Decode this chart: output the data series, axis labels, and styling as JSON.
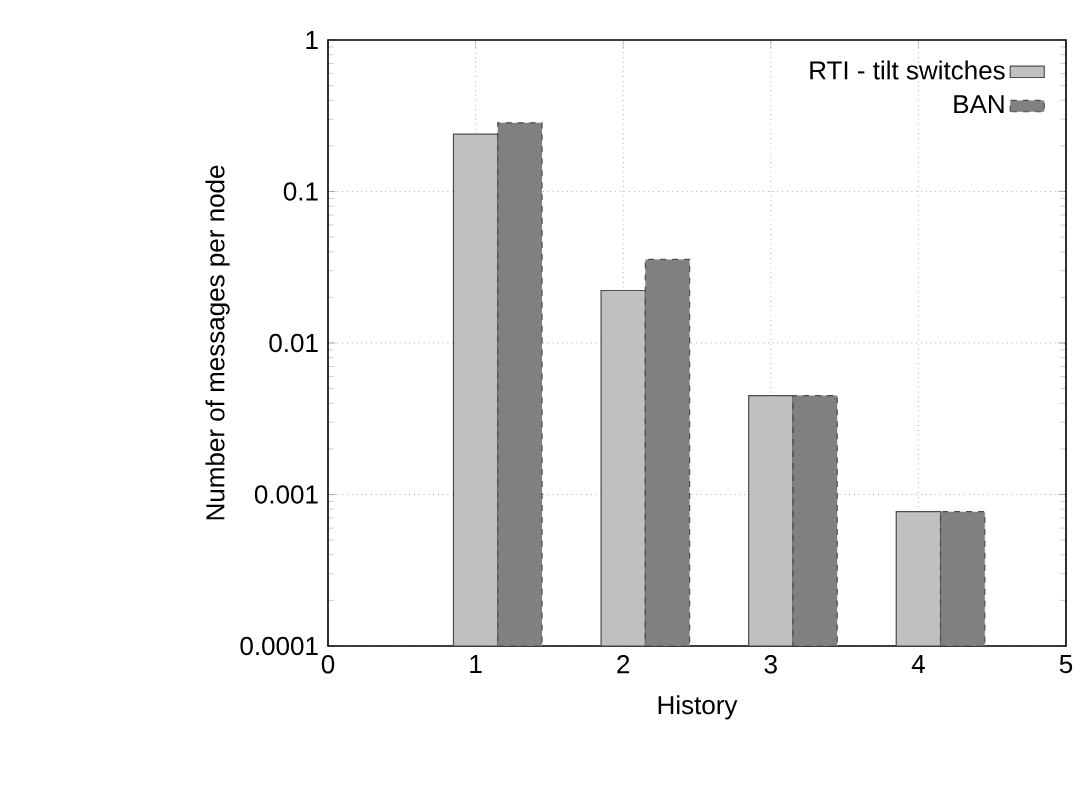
{
  "chart_data": {
    "type": "bar",
    "xlabel": "History",
    "ylabel": "Number of messages per node",
    "series": [
      {
        "name": "RTI - tilt switches",
        "color": "#c0c0c0",
        "x": [
          1,
          2,
          3,
          4
        ],
        "values": [
          0.239,
          0.0222,
          0.0045,
          0.00077
        ]
      },
      {
        "name": "BAN",
        "color": "#808080",
        "x": [
          1,
          2,
          3,
          4
        ],
        "values": [
          0.284,
          0.0356,
          0.0045,
          0.00077
        ],
        "line_style": "dashed"
      }
    ],
    "xlim": [
      0,
      5
    ],
    "xticks": [
      0,
      1,
      2,
      3,
      4,
      5
    ],
    "ylim": [
      0.0001,
      1
    ],
    "yticks": [
      0.0001,
      0.001,
      0.01,
      0.1,
      1
    ],
    "log": "y",
    "grid": true,
    "legend": "top right"
  }
}
